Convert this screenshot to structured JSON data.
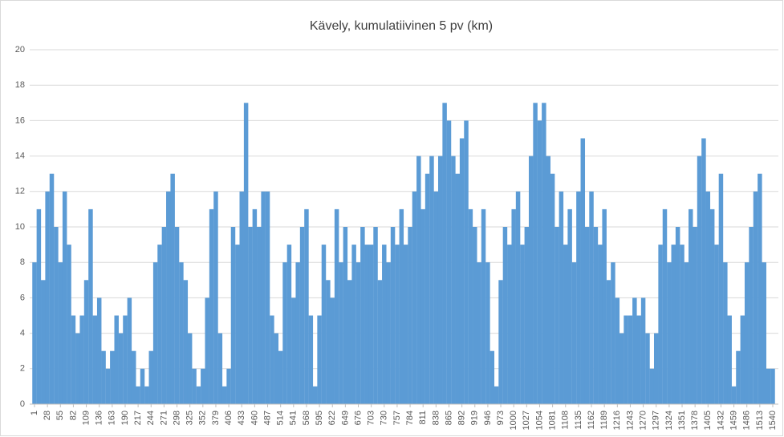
{
  "chart_data": {
    "type": "bar",
    "title": "Kävely, kumulatiivinen 5 pv (km)",
    "color": "#5b9bd5",
    "grid": true,
    "x": [
      1,
      10,
      19,
      28,
      37,
      46,
      55,
      64,
      73,
      82,
      91,
      100,
      109,
      118,
      127,
      136,
      145,
      154,
      163,
      172,
      181,
      190,
      199,
      208,
      217,
      226,
      235,
      244,
      253,
      262,
      271,
      280,
      289,
      298,
      307,
      316,
      325,
      334,
      343,
      352,
      361,
      370,
      379,
      388,
      397,
      406,
      415,
      424,
      433,
      442,
      451,
      460,
      469,
      478,
      487,
      496,
      505,
      514,
      523,
      532,
      541,
      550,
      559,
      568,
      577,
      586,
      595,
      604,
      613,
      622,
      631,
      640,
      649,
      658,
      667,
      676,
      685,
      694,
      703,
      712,
      721,
      730,
      739,
      748,
      757,
      766,
      775,
      784,
      793,
      802,
      811,
      820,
      829,
      838,
      847,
      856,
      865,
      874,
      883,
      892,
      901,
      910,
      919,
      928,
      937,
      946,
      955,
      964,
      973,
      982,
      991,
      1000,
      1009,
      1018,
      1027,
      1036,
      1045,
      1054,
      1063,
      1072,
      1081,
      1090,
      1099,
      1108,
      1117,
      1126,
      1135,
      1144,
      1153,
      1162,
      1171,
      1180,
      1189,
      1198,
      1207,
      1216,
      1225,
      1234,
      1243,
      1252,
      1261,
      1270,
      1279,
      1288,
      1297,
      1306,
      1315,
      1324,
      1333,
      1342,
      1351,
      1360,
      1369,
      1378,
      1387,
      1396,
      1405,
      1414,
      1423,
      1432,
      1441,
      1450,
      1459,
      1468,
      1477,
      1486,
      1495,
      1504,
      1513,
      1522,
      1531,
      1540
    ],
    "values": [
      8,
      11,
      7,
      12,
      13,
      10,
      8,
      12,
      9,
      5,
      4,
      5,
      7,
      11,
      5,
      6,
      3,
      2,
      3,
      5,
      4,
      5,
      6,
      3,
      1,
      2,
      1,
      3,
      8,
      9,
      10,
      12,
      13,
      10,
      8,
      7,
      4,
      2,
      1,
      2,
      6,
      11,
      12,
      4,
      1,
      2,
      10,
      9,
      12,
      17,
      10,
      11,
      10,
      12,
      12,
      5,
      4,
      3,
      8,
      9,
      6,
      8,
      10,
      11,
      5,
      1,
      5,
      9,
      7,
      6,
      11,
      8,
      10,
      7,
      9,
      8,
      10,
      9,
      9,
      10,
      7,
      9,
      8,
      10,
      9,
      11,
      9,
      10,
      12,
      14,
      11,
      13,
      14,
      12,
      14,
      17,
      16,
      14,
      13,
      15,
      16,
      11,
      10,
      8,
      11,
      8,
      3,
      1,
      7,
      10,
      9,
      11,
      12,
      9,
      10,
      14,
      17,
      16,
      17,
      14,
      13,
      10,
      12,
      9,
      11,
      8,
      12,
      15,
      10,
      12,
      10,
      9,
      11,
      7,
      8,
      6,
      4,
      5,
      5,
      6,
      5,
      6,
      4,
      2,
      4,
      9,
      11,
      8,
      9,
      10,
      9,
      8,
      11,
      10,
      14,
      15,
      12,
      11,
      9,
      13,
      8,
      5,
      1,
      3,
      5,
      8,
      10,
      12,
      13,
      8,
      2,
      2
    ],
    "xlim": [
      1,
      1540
    ],
    "xticks": [
      1,
      28,
      55,
      82,
      109,
      136,
      163,
      190,
      217,
      244,
      271,
      298,
      325,
      352,
      379,
      406,
      433,
      460,
      487,
      514,
      541,
      568,
      595,
      622,
      649,
      676,
      703,
      730,
      757,
      784,
      811,
      838,
      865,
      892,
      919,
      946,
      973,
      1000,
      1027,
      1054,
      1081,
      1108,
      1135,
      1162,
      1189,
      1216,
      1243,
      1270,
      1297,
      1324,
      1351,
      1378,
      1405,
      1432,
      1459,
      1486,
      1513,
      1540
    ],
    "ylim": [
      0,
      20
    ],
    "yticks": [
      0,
      2,
      4,
      6,
      8,
      10,
      12,
      14,
      16,
      18,
      20
    ]
  }
}
